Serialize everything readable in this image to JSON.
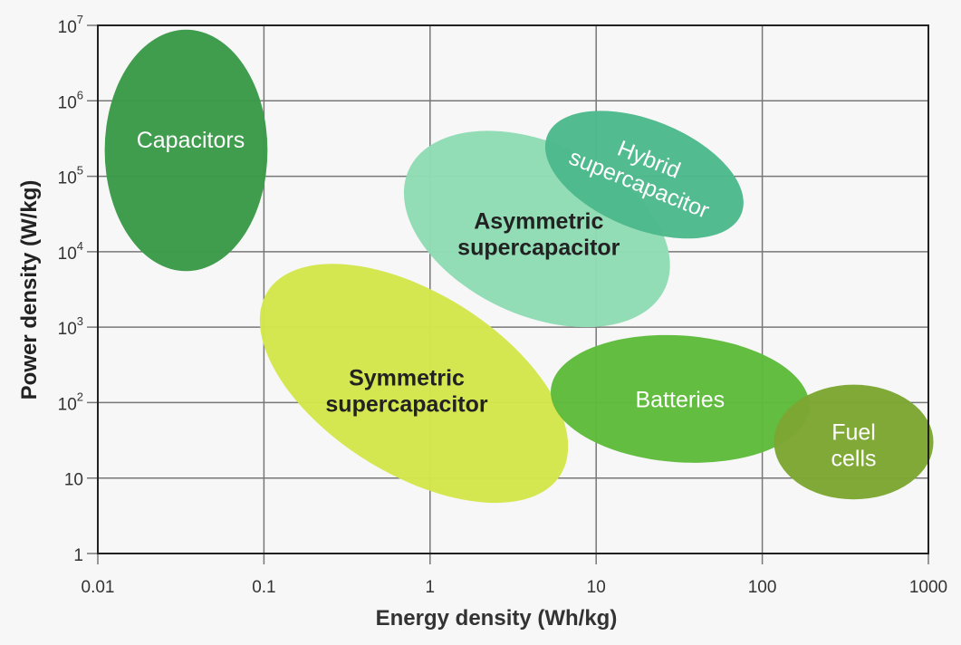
{
  "chart_data": {
    "type": "scatter",
    "subtype": "region-ellipses (Ragone plot)",
    "xlabel": "Energy density (Wh/kg)",
    "ylabel": "Power density (W/kg)",
    "x_scale": "log",
    "y_scale": "log",
    "xlim": [
      0.01,
      1000
    ],
    "ylim": [
      1,
      10000000
    ],
    "grid": true,
    "x_ticks": [
      "0.01",
      "0.1",
      "1",
      "10",
      "100",
      "1000"
    ],
    "x_tick_values": [
      0.01,
      0.1,
      1,
      10,
      100,
      1000
    ],
    "y_ticks": [
      {
        "base": "1",
        "exp": ""
      },
      {
        "base": "10",
        "exp": ""
      },
      {
        "base": "10",
        "exp": "2"
      },
      {
        "base": "10",
        "exp": "3"
      },
      {
        "base": "10",
        "exp": "4"
      },
      {
        "base": "10",
        "exp": "5"
      },
      {
        "base": "10",
        "exp": "6"
      },
      {
        "base": "10",
        "exp": "7"
      }
    ],
    "y_tick_values": [
      1,
      10,
      100,
      1000,
      10000,
      100000,
      1000000,
      10000000
    ],
    "regions": [
      {
        "name": "Capacitors",
        "lines": [
          "Capacitors"
        ],
        "center_energy": 0.034,
        "center_power": 220000,
        "half_width_decades": 0.49,
        "half_height_decades": 1.6,
        "tilt_deg": 0,
        "color": "#3a9a47",
        "label_color": "#ffffff"
      },
      {
        "name": "Symmetric supercapacitor",
        "lines": [
          "Symmetric",
          "supercapacitor"
        ],
        "center_energy": 0.8,
        "center_power": 180,
        "half_width_decades": 1.04,
        "half_height_decades": 1.2,
        "tilt_deg": 32,
        "color": "#d3e64a",
        "label_color": "#222222"
      },
      {
        "name": "Asymmetric supercapacitor",
        "lines": [
          "Asymmetric",
          "supercapacitor"
        ],
        "center_energy": 4.4,
        "center_power": 20000,
        "half_width_decades": 0.85,
        "half_height_decades": 1.14,
        "tilt_deg": 25,
        "color": "#90dcb4",
        "label_color": "#222222"
      },
      {
        "name": "Hybrid supercapacitor",
        "lines": [
          "Hybrid",
          "supercapacitor"
        ],
        "center_energy": 19.5,
        "center_power": 105000,
        "half_width_decades": 0.63,
        "half_height_decades": 0.72,
        "tilt_deg": 22,
        "color": "#4cb98b",
        "label_color": "#ffffff"
      },
      {
        "name": "Batteries",
        "lines": [
          "Batteries"
        ],
        "center_energy": 32,
        "center_power": 112,
        "half_width_decades": 0.78,
        "half_height_decades": 0.84,
        "tilt_deg": 4,
        "color": "#5dbb3b",
        "label_color": "#ffffff"
      },
      {
        "name": "Fuel cells",
        "lines": [
          "Fuel",
          "cells"
        ],
        "center_energy": 355,
        "center_power": 30,
        "half_width_decades": 0.48,
        "half_height_decades": 0.76,
        "tilt_deg": 0,
        "color": "#7ca632",
        "label_color": "#ffffff"
      }
    ]
  }
}
